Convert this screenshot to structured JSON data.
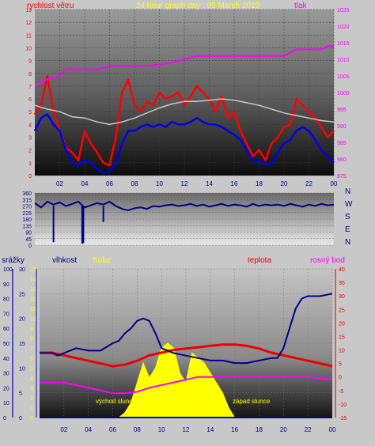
{
  "colors": {
    "background": "#c8c8c8",
    "wind_speed": "#ff0000",
    "wind_avg": "#0000ee",
    "pressure": "#ff00ff",
    "wind_gust_avg": "#c8c8c8",
    "wind_dir": "#00008b",
    "humidity": "#00008b",
    "solar": "#ffff00",
    "temperature": "#ee0000",
    "dewpoint": "#ff00ff",
    "rain": "#0000aa",
    "title": "#ffff00"
  },
  "chart_data": [
    {
      "type": "line",
      "title": "24 hour graph day : 05 March 2019",
      "left_label": "rychlost větru",
      "right_label": "tlak",
      "x_ticks": [
        "02",
        "04",
        "06",
        "08",
        "10",
        "12",
        "14",
        "16",
        "18",
        "20",
        "22",
        "00"
      ],
      "x_range_hours": [
        0,
        24
      ],
      "ylim_left": [
        0,
        13
      ],
      "yticks_left": [
        0,
        1,
        2,
        3,
        4,
        5,
        6,
        7,
        8,
        9,
        10,
        11,
        12,
        13
      ],
      "ylim_right": [
        975,
        1025
      ],
      "yticks_right": [
        975,
        980,
        985,
        990,
        995,
        1000,
        1005,
        1010,
        1015,
        1020,
        1025
      ],
      "grid": true,
      "series": [
        {
          "key": "wind_speed",
          "axis": "left",
          "x": [
            0,
            0.5,
            1,
            1.5,
            2,
            2.5,
            3,
            3.5,
            4,
            4.5,
            5,
            5.5,
            6,
            6.5,
            7,
            7.5,
            8,
            8.5,
            9,
            9.5,
            10,
            10.5,
            11,
            11.5,
            12,
            12.5,
            13,
            13.5,
            14,
            14.5,
            15,
            15.5,
            16,
            16.5,
            17,
            17.5,
            18,
            18.5,
            19,
            19.5,
            20,
            20.5,
            21,
            21.5,
            22,
            22.5,
            23,
            23.5,
            24
          ],
          "y": [
            4.8,
            5.5,
            7.8,
            5.0,
            3.5,
            2.2,
            1.8,
            1.2,
            3.5,
            2.5,
            1.8,
            1.0,
            0.8,
            3.0,
            6.5,
            7.5,
            5.5,
            5.0,
            5.8,
            5.5,
            6.5,
            6.0,
            6.2,
            6.5,
            5.5,
            6.2,
            7.0,
            6.5,
            6.0,
            5.0,
            6.2,
            4.5,
            5.0,
            3.5,
            2.5,
            1.5,
            2.0,
            1.2,
            2.5,
            3.0,
            3.8,
            4.0,
            6.0,
            5.5,
            5.0,
            4.5,
            3.8,
            3.0,
            3.5
          ]
        },
        {
          "key": "wind_avg",
          "axis": "left",
          "x": [
            0,
            0.5,
            1,
            1.5,
            2,
            2.5,
            3,
            3.5,
            4,
            4.5,
            5,
            5.5,
            6,
            6.5,
            7,
            7.5,
            8,
            8.5,
            9,
            9.5,
            10,
            10.5,
            11,
            11.5,
            12,
            12.5,
            13,
            13.5,
            14,
            14.5,
            15,
            15.5,
            16,
            16.5,
            17,
            17.5,
            18,
            18.5,
            19,
            19.5,
            20,
            20.5,
            21,
            21.5,
            22,
            22.5,
            23,
            23.5,
            24
          ],
          "y": [
            3.5,
            4.5,
            4.8,
            4.0,
            3.5,
            2.0,
            1.0,
            0.8,
            1.2,
            1.0,
            0.5,
            0.2,
            0.3,
            1.0,
            2.5,
            3.5,
            3.5,
            3.8,
            4.0,
            3.8,
            4.0,
            3.8,
            4.2,
            4.0,
            4.0,
            4.2,
            4.5,
            4.2,
            4.0,
            4.0,
            3.8,
            3.5,
            3.2,
            2.8,
            2.0,
            1.2,
            1.2,
            0.8,
            1.0,
            1.8,
            2.5,
            2.8,
            3.5,
            3.8,
            3.5,
            2.8,
            2.0,
            1.5,
            1.0
          ]
        },
        {
          "key": "wind_gust_avg",
          "axis": "left",
          "x": [
            0,
            1,
            2,
            3,
            4,
            5,
            6,
            7,
            8,
            9,
            10,
            11,
            12,
            13,
            14,
            15,
            16,
            17,
            18,
            19,
            20,
            21,
            22,
            23,
            24
          ],
          "y": [
            5.5,
            5.2,
            5.0,
            4.6,
            4.5,
            4.2,
            4.0,
            4.2,
            4.5,
            4.9,
            5.3,
            5.6,
            5.8,
            5.8,
            5.9,
            6.0,
            5.9,
            5.7,
            5.5,
            5.2,
            4.9,
            4.7,
            4.5,
            4.3,
            4.2
          ]
        },
        {
          "key": "pressure",
          "axis": "right",
          "x": [
            0,
            1,
            2,
            2.5,
            3,
            4,
            5,
            6,
            7,
            8,
            9,
            10,
            11,
            12,
            13,
            14,
            15,
            16,
            17,
            18,
            19,
            20,
            20.5,
            21,
            21.5,
            22,
            23,
            23.5,
            24
          ],
          "y": [
            1002,
            1004,
            1005,
            1007,
            1007,
            1007,
            1007,
            1008,
            1008,
            1008,
            1008,
            1008.5,
            1009,
            1010,
            1011,
            1011,
            1011,
            1011,
            1011,
            1011,
            1011,
            1011,
            1012,
            1013,
            1013,
            1013,
            1013,
            1014,
            1014
          ]
        }
      ]
    },
    {
      "type": "line",
      "ylim": [
        0,
        360
      ],
      "yticks": [
        0,
        45,
        90,
        135,
        180,
        225,
        270,
        315,
        360
      ],
      "compass_labels": [
        "N",
        "W",
        "S",
        "E",
        "N"
      ],
      "series": [
        {
          "key": "wind_dir",
          "x": [
            0,
            0.5,
            1,
            1.5,
            2,
            2.5,
            3,
            3.5,
            4,
            4.5,
            5,
            5.5,
            6,
            6.5,
            7,
            7.5,
            8,
            8.5,
            9,
            9.5,
            10,
            10.5,
            11,
            11.5,
            12,
            12.5,
            13,
            13.5,
            14,
            14.5,
            15,
            15.5,
            16,
            16.5,
            17,
            17.5,
            18,
            18.5,
            19,
            19.5,
            20,
            20.5,
            21,
            21.5,
            22,
            22.5,
            23,
            23.5,
            24
          ],
          "y": [
            290,
            260,
            300,
            280,
            295,
            270,
            285,
            300,
            260,
            275,
            290,
            280,
            300,
            270,
            250,
            240,
            255,
            260,
            250,
            270,
            265,
            275,
            280,
            270,
            275,
            285,
            270,
            280,
            265,
            275,
            285,
            270,
            280,
            275,
            265,
            285,
            270,
            280,
            275,
            280,
            270,
            285,
            275,
            265,
            280,
            270,
            285,
            275,
            280
          ]
        },
        {
          "key": "wind_dir_spikes",
          "x": [
            1.5,
            3.8,
            3.9,
            5.5
          ],
          "y": [
            20,
            10,
            15,
            160
          ]
        }
      ]
    },
    {
      "type": "line",
      "left_label_rain": "srážky",
      "left_label_humidity": "vlhkost",
      "left_label_solar": "Solar",
      "right_label_temp": "teplota",
      "right_label_dew": "rosný bod",
      "annotation_sunrise": "východ slunce",
      "annotation_sunset": "západ slunce",
      "x_ticks": [
        "02",
        "04",
        "06",
        "08",
        "10",
        "12",
        "14",
        "16",
        "18",
        "20",
        "22",
        "00"
      ],
      "x_range_hours": [
        0,
        24
      ],
      "ylim_rain": [
        0,
        100
      ],
      "yticks_rain": [
        0,
        10,
        20,
        30,
        40,
        50,
        60,
        70,
        80,
        90,
        100
      ],
      "ylim_humidity": [
        0,
        30
      ],
      "yticks_humidity": [
        0,
        5,
        10,
        15,
        20,
        25,
        30
      ],
      "ylim_solar": [
        0,
        15
      ],
      "yticks_solar": [
        0,
        1,
        2,
        3,
        4,
        5,
        6,
        7,
        8,
        9,
        10,
        11,
        12,
        13,
        14,
        15
      ],
      "ylim_temp": [
        -15,
        40
      ],
      "yticks_temp": [
        -15,
        -10,
        -5,
        0,
        5,
        10,
        15,
        20,
        25,
        30,
        35,
        40
      ],
      "grid": true,
      "series": [
        {
          "key": "humidity",
          "x": [
            0,
            1,
            1.5,
            2,
            3,
            4,
            5,
            6,
            6.5,
            7,
            7.5,
            8,
            8.5,
            9,
            9.5,
            10,
            11,
            12,
            13,
            14,
            15,
            16,
            17,
            18,
            19,
            19.5,
            20,
            20.5,
            21,
            21.5,
            22,
            23,
            24
          ],
          "y": [
            13,
            13,
            12.5,
            13,
            14,
            13.5,
            13.5,
            15,
            15.5,
            17,
            18,
            19.5,
            20,
            19.5,
            17,
            14,
            13,
            12.5,
            12,
            11.5,
            11.5,
            11,
            11,
            11.5,
            12,
            12,
            14,
            18,
            22,
            24,
            24.5,
            24.5,
            25
          ]
        },
        {
          "key": "temperature",
          "x": [
            0,
            1,
            2,
            3,
            4,
            5,
            6,
            7,
            8,
            9,
            10,
            11,
            12,
            13,
            14,
            15,
            16,
            17,
            18,
            19,
            20,
            21,
            22,
            23,
            24
          ],
          "y": [
            9,
            9,
            8,
            7,
            6,
            5,
            4,
            4.5,
            6,
            8,
            9,
            10,
            10.5,
            11,
            11.5,
            12,
            12,
            11.5,
            10.5,
            9,
            8,
            7,
            6,
            5,
            4
          ]
        },
        {
          "key": "dewpoint",
          "x": [
            0,
            1,
            2,
            3,
            4,
            5,
            6,
            7,
            8,
            9,
            10,
            11,
            12,
            13,
            14,
            15,
            16,
            17,
            18,
            19,
            20,
            21,
            22,
            23,
            24
          ],
          "y": [
            -2,
            -2,
            -2,
            -3,
            -4,
            -5,
            -6,
            -6,
            -5.5,
            -4,
            -3,
            -2,
            -1,
            0,
            0,
            0,
            0,
            0,
            0,
            0,
            0,
            0,
            0,
            -0.5,
            -1
          ]
        },
        {
          "key": "solar",
          "x": [
            6.5,
            7,
            7.5,
            8,
            8.5,
            9,
            9.5,
            10,
            10.5,
            11,
            11.5,
            12,
            12.5,
            13,
            13.5,
            14,
            14.5,
            15,
            15.5,
            16
          ],
          "y": [
            0,
            0.5,
            1.5,
            3.5,
            5.5,
            4,
            5,
            7,
            7.5,
            7,
            4.5,
            3.5,
            6.5,
            6,
            5.5,
            4.5,
            3.5,
            2.5,
            1,
            0
          ]
        },
        {
          "key": "rain",
          "x": [
            0,
            24
          ],
          "y": [
            0,
            0
          ]
        }
      ]
    }
  ]
}
